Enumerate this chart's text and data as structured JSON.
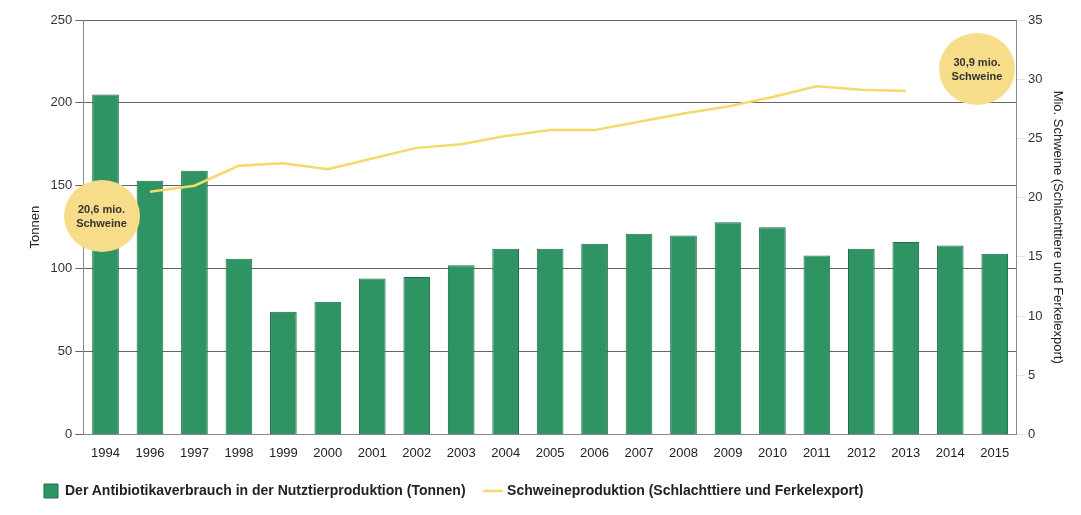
{
  "chart_data": {
    "type": "bar",
    "ylabel": "Tonnen",
    "y2label": "Mio. Schweine (Schlachttiere und Ferkelexport)",
    "categories": [
      "1994",
      "1996",
      "1997",
      "1998",
      "1999",
      "2000",
      "2001",
      "2002",
      "2003",
      "2004",
      "2005",
      "2006",
      "2007",
      "2008",
      "2009",
      "2010",
      "2011",
      "2012",
      "2013",
      "2014",
      "2015"
    ],
    "series": [
      {
        "name": "Der Antibiotikaverbrauch in der Nutztierproduktion (Tonnen)",
        "color": "#2e9463",
        "values": [
          205,
          153,
          159,
          106,
          74,
          80,
          94,
          95,
          102,
          112,
          112,
          115,
          121,
          120,
          128,
          125,
          108,
          112,
          116,
          114,
          109
        ]
      },
      {
        "name": "Schweineproduktion (Schlachttiere und Ferkelexport)",
        "type": "line",
        "axis": "y2",
        "color": "#f5d96b",
        "values": [
          null,
          20.5,
          21.0,
          22.7,
          22.9,
          22.4,
          23.3,
          24.2,
          24.5,
          25.2,
          25.7,
          25.7,
          26.4,
          27.1,
          27.7,
          28.5,
          29.4,
          29.1,
          29.0,
          null,
          null
        ]
      }
    ],
    "ylim": [
      0,
      250
    ],
    "yticks": [
      0,
      50,
      100,
      150,
      200,
      250
    ],
    "y2lim": [
      0,
      35
    ],
    "y2ticks": [
      0,
      5,
      10,
      15,
      20,
      25,
      30,
      35
    ],
    "annotations": [
      "20,6 mio.\nSchweine",
      "30,9 mio.\nSchweine"
    ],
    "grid": "y",
    "legend": "bottom",
    "marker": "none"
  }
}
